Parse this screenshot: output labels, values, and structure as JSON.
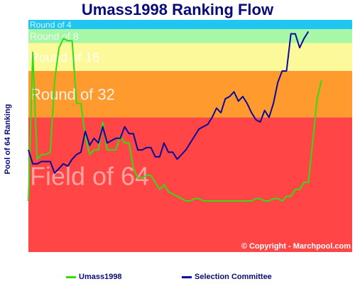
{
  "chart_data": {
    "type": "line",
    "title": "Umass1998 Ranking Flow",
    "ylabel": "Pool of 64 Ranking",
    "copyright": "© Copyright - Marchpool.com",
    "x_points": 75,
    "y_range": [
      0,
      100
    ],
    "bands": [
      {
        "name": "Round of 4",
        "from": 96,
        "to": 100,
        "color": "#1fc6f2",
        "label_size": 12
      },
      {
        "name": "Round of 8",
        "from": 90,
        "to": 96,
        "color": "#a7f7a7",
        "label_size": 14
      },
      {
        "name": "Round of 16",
        "from": 78,
        "to": 90,
        "color": "#fbf99a",
        "label_size": 18
      },
      {
        "name": "Round of 32",
        "from": 58,
        "to": 78,
        "color": "#ff9a2e",
        "label_size": 22
      },
      {
        "name": "Field of 64",
        "from": 0,
        "to": 58,
        "color": "#ff4545",
        "label_size": 36
      }
    ],
    "series": [
      {
        "name": "Umass1998",
        "color": "#33dd11",
        "values": [
          22,
          86,
          40,
          42,
          42,
          43,
          74,
          88,
          92,
          91,
          91,
          64,
          64,
          50,
          42,
          44,
          44,
          56,
          44,
          44,
          44,
          50,
          47,
          47,
          36,
          32,
          32,
          33,
          33,
          30,
          27,
          29,
          26,
          25,
          24,
          23,
          22,
          22,
          23,
          23,
          22,
          22,
          22,
          22,
          22,
          22,
          22,
          22,
          22,
          22,
          22,
          22,
          23,
          23,
          22,
          22,
          23,
          23,
          22,
          24,
          24,
          27,
          27,
          30,
          30,
          48,
          66,
          74
        ]
      },
      {
        "name": "Selection Committee",
        "color": "#0a0a9a",
        "values": [
          44,
          38,
          38,
          39,
          39,
          39,
          34,
          36,
          38,
          37,
          40,
          42,
          43,
          52,
          46,
          49,
          47,
          54,
          47,
          48,
          49,
          49,
          54,
          51,
          51,
          44,
          44,
          45,
          45,
          41,
          41,
          47,
          43,
          43,
          40,
          42,
          44,
          47,
          50,
          53,
          54,
          55,
          58,
          62,
          60,
          66,
          67,
          69,
          65,
          67,
          64,
          60,
          57,
          56,
          61,
          58,
          64,
          73,
          78,
          78,
          94,
          94,
          88,
          92,
          95
        ]
      }
    ],
    "legend_position": "bottom"
  }
}
